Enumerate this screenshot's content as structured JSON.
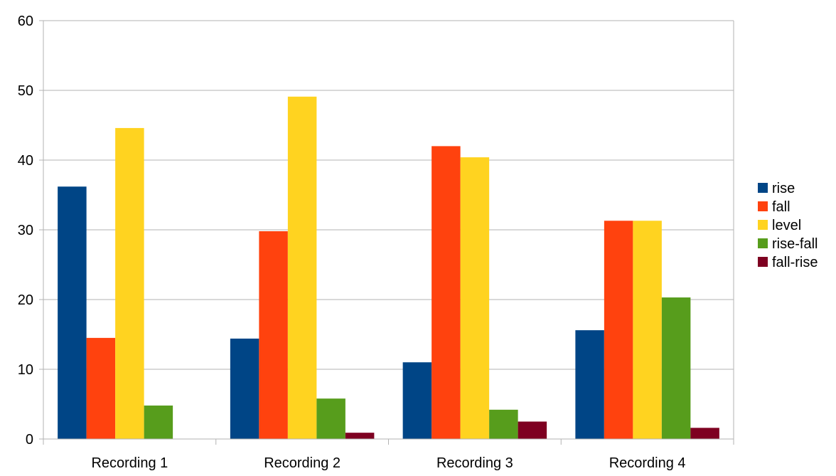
{
  "chart_data": {
    "type": "bar",
    "title": "",
    "xlabel": "",
    "ylabel": "",
    "ylim": [
      0,
      60
    ],
    "yticks": [
      0,
      10,
      20,
      30,
      40,
      50,
      60
    ],
    "grid": true,
    "legend_position": "right",
    "categories": [
      "Recording 1",
      "Recording 2",
      "Recording 3",
      "Recording 4"
    ],
    "series": [
      {
        "name": "rise",
        "color": "#004586",
        "values": [
          36.2,
          14.4,
          11.0,
          15.6
        ]
      },
      {
        "name": "fall",
        "color": "#ff420e",
        "values": [
          14.5,
          29.8,
          42.0,
          31.3
        ]
      },
      {
        "name": "level",
        "color": "#ffd320",
        "values": [
          44.6,
          49.1,
          40.4,
          31.3
        ]
      },
      {
        "name": "rise-fall",
        "color": "#579d1c",
        "values": [
          4.8,
          5.8,
          4.2,
          20.3
        ]
      },
      {
        "name": "fall-rise",
        "color": "#7e0021",
        "values": [
          0,
          0.9,
          2.5,
          1.6
        ]
      }
    ]
  }
}
